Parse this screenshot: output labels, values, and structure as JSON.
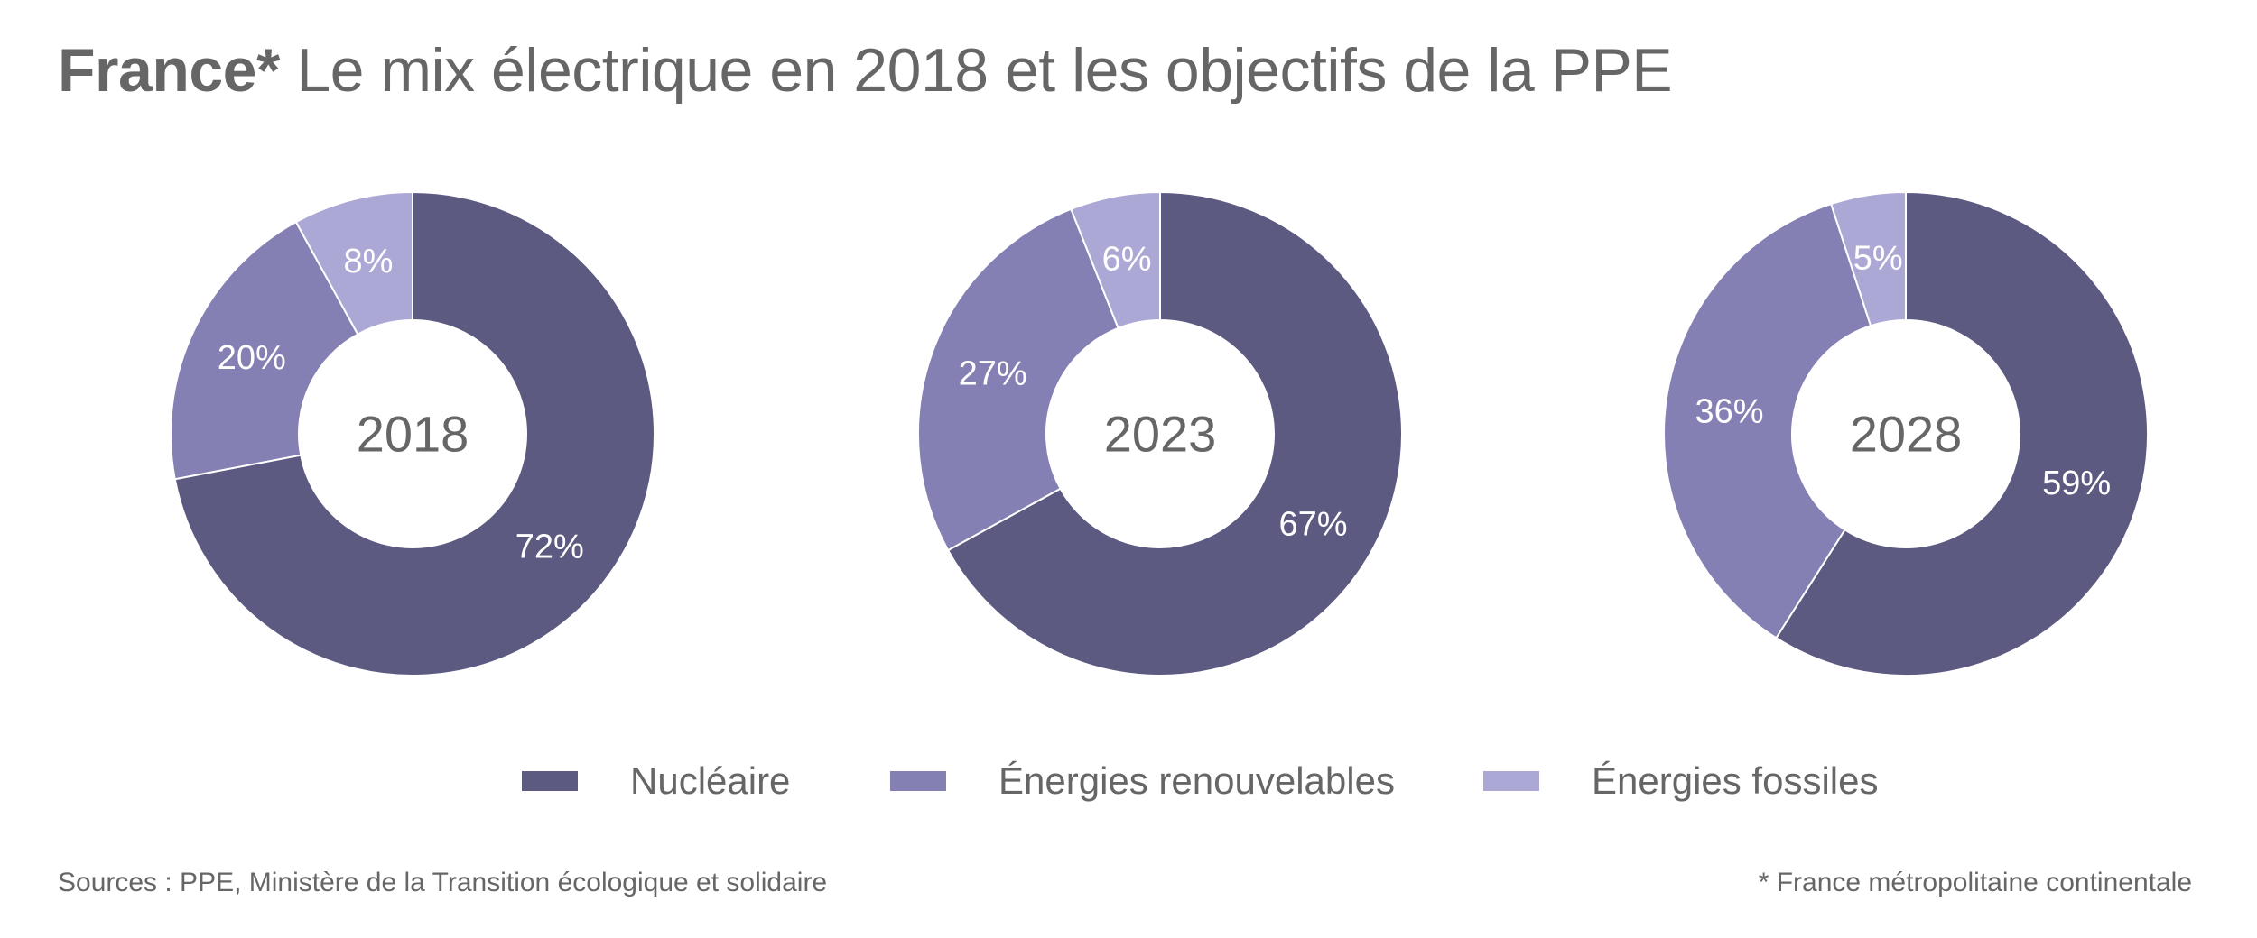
{
  "title": {
    "bold": "France*",
    "rest": " Le mix électrique en 2018 et les objectifs de la PPE"
  },
  "colors": {
    "nucleaire": "#5c5a80",
    "renouvelables": "#8480b4",
    "fossiles": "#aba8d6",
    "text": "#666666"
  },
  "chart_data": {
    "type": "pie",
    "variant": "donut",
    "title": "France* Le mix électrique en 2018 et les objectifs de la PPE",
    "categories": [
      "Nucléaire",
      "Énergies renouvelables",
      "Énergies fossiles"
    ],
    "charts": [
      {
        "label": "2018",
        "values": [
          72,
          20,
          8
        ],
        "value_labels": [
          "72%",
          "20%",
          "8%"
        ]
      },
      {
        "label": "2023",
        "values": [
          67,
          27,
          6
        ],
        "value_labels": [
          "67%",
          "27%",
          "6%"
        ]
      },
      {
        "label": "2028",
        "values": [
          59,
          36,
          5
        ],
        "value_labels": [
          "59%",
          "36%",
          "5%"
        ]
      }
    ],
    "unit": "%",
    "legend_position": "bottom-center"
  },
  "legend": [
    {
      "label": "Nucléaire",
      "color": "#5c5a80"
    },
    {
      "label": "Énergies renouvelables",
      "color": "#8480b4"
    },
    {
      "label": "Énergies fossiles",
      "color": "#aba8d6"
    }
  ],
  "footer": {
    "sources": "Sources : PPE, Ministère de la Transition écologique et solidaire",
    "note": "* France métropolitaine continentale"
  }
}
